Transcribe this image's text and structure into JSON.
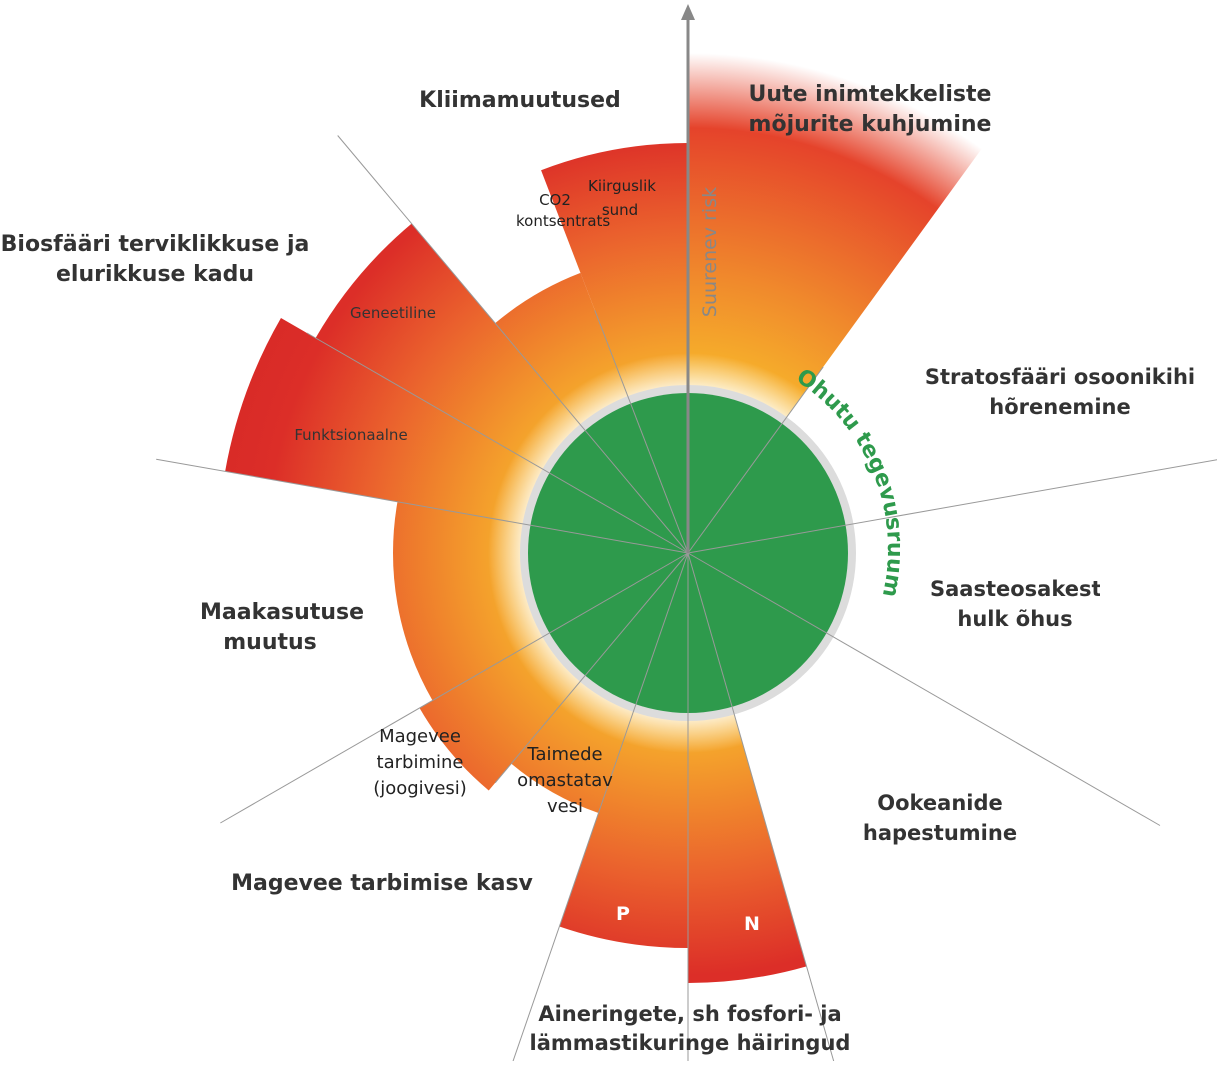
{
  "arrow_label": "Suurenev risk",
  "safe_space_label": "Ohutu tegevusruum",
  "boundaries": {
    "novel_entities": "Uute inimtekkeliste mõjurite kuhjumine",
    "climate": {
      "title": "Kliimamuutused",
      "co2": "CO2 kontsentratsioon",
      "radiative": "Kiirguslik sund"
    },
    "biosphere": {
      "title": "Biosfääri terviklikkuse ja elurikkuse kadu",
      "genetic": "Geneetiline",
      "functional": "Funktsionaalne"
    },
    "ozone": "Stratosfääri osoonikihi hõrenemine",
    "aerosols": "Saasteosakeste hulk õhus",
    "ocean": "Ookeanide hapestumine",
    "biogeochemical": {
      "title": "Aineringete, sh fosfori- ja lämmastikuringe häiringud",
      "p": "P",
      "n": "N"
    },
    "freshwater": {
      "title": "Magevee tarbimise kasv",
      "blue": "Magevee tarbimine (joogivesi)",
      "green": "Taimede omastatav vesi"
    },
    "land": "Maakasutuse muutus"
  }
}
